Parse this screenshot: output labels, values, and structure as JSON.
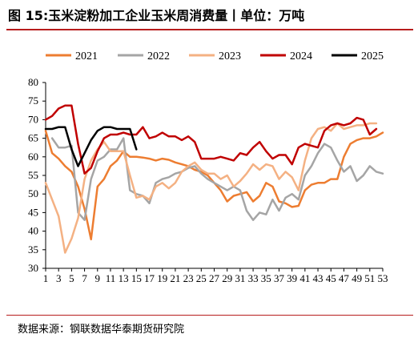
{
  "title": "图 15:玉米淀粉加工企业玉米周消费量丨单位：万吨",
  "source": "数据来源：钢联数据华泰期货研究院",
  "chart_data": {
    "type": "line",
    "title": "玉米淀粉加工企业玉米周消费量",
    "unit": "万吨",
    "xlabel": "",
    "ylabel": "",
    "ylim": [
      30,
      80
    ],
    "xlim": [
      1,
      53
    ],
    "y_ticks": [
      30,
      35,
      40,
      45,
      50,
      55,
      60,
      65,
      70,
      75,
      80
    ],
    "x_ticks": [
      1,
      3,
      5,
      7,
      9,
      11,
      13,
      15,
      17,
      19,
      21,
      23,
      25,
      27,
      29,
      31,
      33,
      35,
      37,
      39,
      41,
      43,
      45,
      47,
      49,
      51,
      53
    ],
    "legend_position": "top",
    "grid": false,
    "series": [
      {
        "name": "2021",
        "color": "#ed7d31",
        "width": 2.5,
        "x": [
          1,
          2,
          3,
          4,
          5,
          6,
          7,
          8,
          9,
          10,
          11,
          12,
          13,
          14,
          15,
          16,
          17,
          18,
          19,
          20,
          21,
          22,
          23,
          24,
          25,
          26,
          27,
          28,
          29,
          30,
          31,
          32,
          33,
          34,
          35,
          36,
          37,
          38,
          39,
          40,
          41,
          42,
          43,
          44,
          45,
          46,
          47,
          48,
          49,
          50,
          51,
          52,
          53
        ],
        "values": [
          67,
          61,
          59.5,
          57.5,
          56,
          52,
          46,
          37.8,
          52,
          54,
          57.5,
          59,
          61.5,
          60,
          60,
          59.8,
          59.5,
          59,
          59.5,
          59.2,
          58.5,
          58,
          57.5,
          56.5,
          56,
          55,
          53,
          51,
          48,
          49.5,
          50,
          50.5,
          48,
          49.5,
          53,
          52,
          48,
          47.5,
          46.5,
          46.8,
          51,
          52.5,
          53,
          53,
          54,
          54,
          60,
          63.5,
          64.5,
          65,
          65,
          65.5,
          66.5
        ]
      },
      {
        "name": "2022",
        "color": "#a5a5a5",
        "width": 2.5,
        "x": [
          2,
          3,
          4,
          5,
          6,
          7,
          8,
          9,
          10,
          11,
          12,
          13,
          14,
          15,
          16,
          17,
          18,
          19,
          20,
          21,
          22,
          23,
          24,
          25,
          26,
          27,
          28,
          29,
          30,
          31,
          32,
          33,
          34,
          35,
          36,
          37,
          38,
          39,
          40,
          41,
          42,
          43,
          44,
          45,
          46,
          47,
          48,
          49,
          50,
          51,
          52,
          53
        ],
        "values": [
          65,
          62.5,
          62.5,
          63,
          45,
          43,
          54,
          59,
          60,
          62,
          62,
          65,
          51,
          50,
          49.5,
          47.5,
          53,
          54,
          54.5,
          55.5,
          56,
          57,
          57.5,
          55.5,
          54,
          53,
          52,
          51,
          52,
          51,
          45.5,
          43,
          45,
          44.5,
          48.5,
          45.5,
          49,
          50,
          48.5,
          55,
          57.5,
          61,
          63.5,
          62.5,
          59,
          56,
          57.5,
          53.5,
          55,
          57.5,
          56,
          55.5
        ]
      },
      {
        "name": "2023",
        "color": "#f4b183",
        "width": 2.5,
        "x": [
          1,
          2,
          3,
          4,
          5,
          6,
          7,
          8,
          9,
          10,
          11,
          12,
          13,
          14,
          15,
          16,
          17,
          18,
          19,
          20,
          21,
          22,
          23,
          24,
          25,
          26,
          27,
          28,
          29,
          30,
          31,
          32,
          33,
          34,
          35,
          36,
          37,
          38,
          39,
          40,
          41,
          42,
          43,
          44,
          45,
          46,
          47,
          48,
          49,
          50,
          51,
          52
        ],
        "values": [
          53,
          48.5,
          44,
          34.2,
          38,
          43.5,
          54,
          59,
          62,
          64,
          61.5,
          61.5,
          61.5,
          55,
          49,
          49.5,
          48.5,
          52,
          53,
          51.5,
          53,
          56,
          57.5,
          58.5,
          56.5,
          55.5,
          55.5,
          54,
          55,
          52,
          53.5,
          55.5,
          58,
          56.5,
          58,
          57.5,
          54,
          56,
          54.5,
          51,
          59,
          65,
          67.5,
          68,
          67,
          69,
          67.5,
          68,
          68.5,
          68.5,
          69,
          69
        ]
      },
      {
        "name": "2024",
        "color": "#c00000",
        "width": 2.5,
        "x": [
          1,
          2,
          3,
          4,
          5,
          6,
          7,
          8,
          9,
          10,
          11,
          12,
          13,
          14,
          15,
          16,
          17,
          18,
          19,
          20,
          21,
          22,
          23,
          24,
          25,
          26,
          27,
          28,
          29,
          30,
          31,
          32,
          33,
          34,
          35,
          36,
          37,
          38,
          39,
          40,
          41,
          42,
          43,
          44,
          45,
          46,
          47,
          48,
          49,
          50,
          51,
          52
        ],
        "values": [
          70,
          71,
          73,
          73.8,
          73.8,
          63.5,
          55.5,
          57,
          61.5,
          65,
          66,
          66,
          66.5,
          66,
          66,
          68,
          65,
          65.5,
          66.5,
          65.5,
          65.5,
          64.5,
          65.5,
          64,
          59.5,
          59.5,
          59.5,
          60,
          59.5,
          59,
          61,
          60.5,
          62.5,
          64,
          61.5,
          59.5,
          60.5,
          60.5,
          58,
          62.5,
          63.5,
          63,
          62.5,
          67,
          68.5,
          69,
          68.5,
          69,
          70.5,
          70,
          66,
          67.5
        ]
      },
      {
        "name": "2025",
        "color": "#000000",
        "width": 2.5,
        "x": [
          1,
          2,
          3,
          4,
          5,
          6,
          7,
          8,
          9,
          10,
          11,
          12,
          13,
          14,
          15
        ],
        "values": [
          67.5,
          67.5,
          68,
          68,
          62,
          57.5,
          61,
          64.5,
          67,
          68,
          68,
          67.5,
          67.5,
          67.5,
          62
        ]
      }
    ]
  }
}
